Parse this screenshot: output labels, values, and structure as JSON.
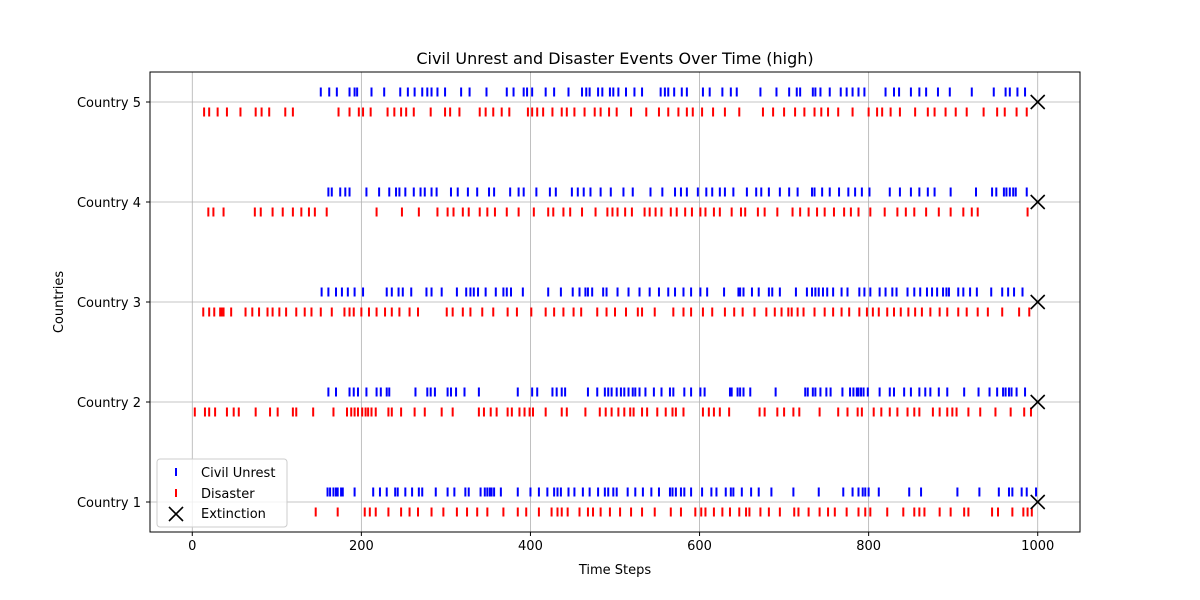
{
  "chart_data": {
    "type": "scatter",
    "title": "Civil Unrest and Disaster Events Over Time (high)",
    "xlabel": "Time Steps",
    "ylabel": "Countries",
    "xlim": [
      -50,
      1050
    ],
    "ylim": [
      0.7,
      5.3
    ],
    "xticks": [
      0,
      200,
      400,
      600,
      800,
      1000
    ],
    "yticks": [
      1,
      2,
      3,
      4,
      5
    ],
    "ytick_labels": [
      "Country 1",
      "Country 2",
      "Country 3",
      "Country 4",
      "Country 5"
    ],
    "grid": true,
    "legend_position": "lower-left",
    "series": [
      {
        "name": "Civil Unrest",
        "color": "#0000ff",
        "marker": "vertical-bar",
        "y_offset": 0.1,
        "points": {
          "Country 1": [
            160,
            163,
            167,
            170,
            172,
            176,
            178,
            192,
            214,
            222,
            230,
            240,
            243,
            252,
            260,
            268,
            272,
            288,
            302,
            310,
            323,
            327,
            341,
            346,
            349,
            352,
            354,
            357,
            365,
            385,
            400,
            410,
            420,
            428,
            432,
            436,
            445,
            452,
            462,
            470,
            480,
            488,
            492,
            498,
            502,
            515,
            524,
            533,
            543,
            552,
            565,
            568,
            572,
            578,
            582,
            590,
            603,
            614,
            620,
            631,
            637,
            640,
            650,
            661,
            670,
            685,
            711,
            741,
            770,
            781,
            788,
            793,
            796,
            800,
            812,
            848,
            862,
            905,
            931,
            954,
            966,
            970,
            981,
            987,
            998
          ],
          "Country 2": [
            161,
            170,
            186,
            191,
            196,
            206,
            218,
            223,
            230,
            233,
            264,
            278,
            282,
            287,
            302,
            306,
            312,
            322,
            339,
            385,
            402,
            408,
            426,
            431,
            437,
            441,
            468,
            479,
            488,
            492,
            496,
            502,
            507,
            511,
            516,
            521,
            524,
            529,
            536,
            546,
            555,
            565,
            569,
            582,
            590,
            601,
            606,
            636,
            638,
            645,
            648,
            652,
            660,
            690,
            725,
            728,
            734,
            737,
            743,
            750,
            755,
            769,
            778,
            782,
            786,
            788,
            791,
            794,
            799,
            813,
            825,
            830,
            842,
            850,
            860,
            867,
            873,
            883,
            893,
            913,
            930,
            943,
            952,
            959,
            962,
            966,
            969,
            975,
            985
          ],
          "Country 3": [
            153,
            161,
            170,
            177,
            184,
            192,
            202,
            230,
            236,
            244,
            249,
            259,
            277,
            283,
            295,
            313,
            324,
            329,
            333,
            338,
            347,
            359,
            368,
            372,
            377,
            391,
            421,
            436,
            450,
            458,
            465,
            468,
            473,
            486,
            490,
            503,
            516,
            529,
            541,
            552,
            563,
            571,
            581,
            590,
            601,
            609,
            629,
            646,
            648,
            652,
            662,
            670,
            682,
            686,
            695,
            714,
            727,
            733,
            737,
            741,
            746,
            751,
            758,
            768,
            775,
            789,
            795,
            802,
            813,
            820,
            828,
            833,
            846,
            854,
            861,
            869,
            875,
            881,
            888,
            892,
            895,
            906,
            912,
            920,
            928,
            945,
            958,
            965,
            972,
            982
          ],
          "Country 4": [
            161,
            165,
            175,
            181,
            186,
            206,
            221,
            233,
            241,
            245,
            252,
            262,
            270,
            275,
            283,
            289,
            306,
            314,
            326,
            337,
            351,
            357,
            376,
            386,
            392,
            407,
            423,
            430,
            449,
            456,
            463,
            471,
            483,
            495,
            510,
            521,
            542,
            556,
            571,
            578,
            585,
            598,
            608,
            615,
            624,
            630,
            640,
            656,
            667,
            673,
            682,
            695,
            706,
            716,
            733,
            736,
            745,
            754,
            765,
            776,
            784,
            792,
            801,
            825,
            837,
            850,
            860,
            870,
            878,
            897,
            927,
            946,
            951,
            960,
            963,
            967,
            971,
            974,
            987
          ],
          "Country 5": [
            152,
            162,
            171,
            186,
            192,
            195,
            212,
            227,
            246,
            255,
            263,
            272,
            278,
            283,
            290,
            299,
            318,
            328,
            348,
            372,
            380,
            392,
            396,
            402,
            418,
            428,
            445,
            461,
            466,
            470,
            480,
            485,
            494,
            498,
            504,
            513,
            523,
            532,
            554,
            559,
            563,
            570,
            579,
            585,
            604,
            612,
            627,
            637,
            644,
            672,
            691,
            706,
            715,
            719,
            734,
            737,
            743,
            754,
            767,
            774,
            781,
            788,
            795,
            820,
            830,
            836,
            850,
            860,
            868,
            882,
            896,
            922,
            948,
            962,
            967,
            976,
            985
          ]
        }
      },
      {
        "name": "Disaster",
        "color": "#ff0000",
        "marker": "vertical-bar",
        "y_offset": -0.1,
        "points": {
          "Country 1": [
            146,
            172,
            204,
            210,
            217,
            232,
            247,
            257,
            267,
            283,
            297,
            313,
            325,
            337,
            349,
            368,
            385,
            395,
            410,
            425,
            432,
            437,
            444,
            458,
            468,
            474,
            483,
            494,
            506,
            519,
            532,
            547,
            566,
            578,
            595,
            602,
            607,
            617,
            627,
            636,
            647,
            655,
            659,
            672,
            682,
            695,
            712,
            717,
            729,
            742,
            752,
            760,
            774,
            788,
            796,
            802,
            822,
            841,
            854,
            860,
            866,
            884,
            897,
            913,
            918,
            946,
            953,
            970,
            983,
            988,
            993
          ],
          "Country 2": [
            3,
            15,
            20,
            27,
            41,
            49,
            55,
            75,
            92,
            101,
            119,
            123,
            143,
            167,
            183,
            188,
            192,
            196,
            201,
            205,
            208,
            212,
            217,
            232,
            236,
            247,
            263,
            275,
            295,
            308,
            339,
            345,
            353,
            360,
            373,
            378,
            387,
            393,
            399,
            403,
            418,
            437,
            443,
            465,
            482,
            489,
            496,
            504,
            511,
            518,
            522,
            532,
            538,
            550,
            560,
            568,
            572,
            581,
            604,
            611,
            617,
            624,
            635,
            671,
            677,
            692,
            700,
            711,
            718,
            742,
            764,
            775,
            787,
            792,
            806,
            815,
            825,
            834,
            846,
            854,
            860,
            876,
            884,
            893,
            899,
            904,
            918,
            932,
            950,
            968,
            984,
            992
          ],
          "Country 3": [
            13,
            20,
            26,
            33,
            35,
            37,
            46,
            63,
            71,
            79,
            89,
            95,
            103,
            111,
            123,
            133,
            141,
            152,
            165,
            180,
            186,
            191,
            200,
            209,
            218,
            228,
            236,
            245,
            257,
            267,
            301,
            308,
            320,
            329,
            343,
            356,
            373,
            384,
            401,
            418,
            428,
            439,
            451,
            460,
            479,
            490,
            500,
            513,
            527,
            532,
            547,
            569,
            581,
            590,
            604,
            615,
            630,
            641,
            651,
            665,
            679,
            689,
            697,
            705,
            709,
            716,
            723,
            736,
            748,
            758,
            768,
            777,
            789,
            798,
            805,
            812,
            822,
            830,
            838,
            847,
            855,
            863,
            873,
            884,
            893,
            906,
            916,
            929,
            941,
            958,
            978,
            990
          ],
          "Country 4": [
            19,
            25,
            37,
            74,
            81,
            95,
            107,
            119,
            129,
            138,
            145,
            159,
            218,
            248,
            268,
            290,
            302,
            309,
            320,
            327,
            340,
            349,
            358,
            372,
            386,
            404,
            421,
            427,
            439,
            447,
            461,
            477,
            491,
            497,
            503,
            512,
            520,
            535,
            541,
            548,
            555,
            566,
            573,
            583,
            591,
            601,
            607,
            617,
            624,
            638,
            649,
            654,
            669,
            677,
            692,
            710,
            719,
            729,
            739,
            748,
            759,
            771,
            779,
            788,
            802,
            819,
            834,
            844,
            854,
            868,
            883,
            897,
            912,
            922,
            929,
            988
          ],
          "Country 5": [
            14,
            20,
            30,
            41,
            57,
            75,
            82,
            91,
            110,
            119,
            173,
            186,
            197,
            202,
            211,
            231,
            239,
            247,
            253,
            262,
            282,
            299,
            305,
            316,
            340,
            347,
            356,
            366,
            375,
            397,
            402,
            408,
            415,
            426,
            437,
            443,
            452,
            464,
            476,
            483,
            493,
            502,
            519,
            537,
            552,
            563,
            575,
            585,
            592,
            603,
            616,
            630,
            647,
            675,
            687,
            700,
            713,
            724,
            736,
            744,
            752,
            764,
            781,
            800,
            810,
            816,
            826,
            837,
            855,
            870,
            878,
            891,
            903,
            916,
            936,
            952,
            961,
            975,
            987
          ]
        }
      }
    ],
    "extinction": {
      "name": "Extinction",
      "color": "#000000",
      "marker": "x",
      "points": [
        {
          "x": 1000,
          "y": 1
        },
        {
          "x": 1000,
          "y": 2
        },
        {
          "x": 1000,
          "y": 3
        },
        {
          "x": 1000,
          "y": 4
        },
        {
          "x": 1000,
          "y": 5
        }
      ]
    }
  }
}
